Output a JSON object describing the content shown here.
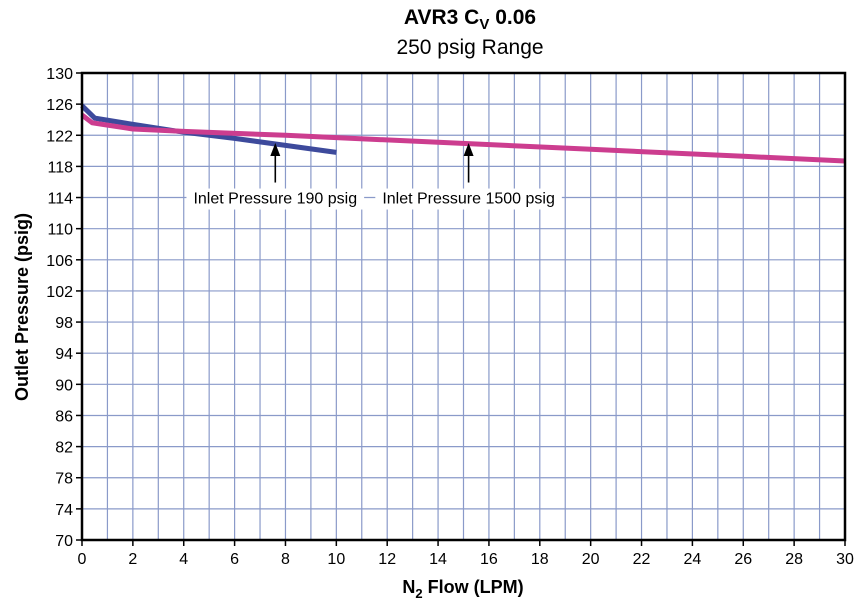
{
  "chart_data": {
    "type": "line",
    "title": {
      "prefix": "AVR3 C",
      "subscript": "V",
      "suffix": " 0.06"
    },
    "subtitle": "250 psig Range",
    "xlabel": {
      "prefix": "N",
      "subscript": "2",
      "suffix": " Flow (LPM)"
    },
    "ylabel": "Outlet Pressure (psig)",
    "xlim": [
      0,
      30
    ],
    "ylim": [
      70,
      130
    ],
    "x_ticks": [
      0,
      2,
      4,
      6,
      8,
      10,
      12,
      14,
      16,
      18,
      20,
      22,
      24,
      26,
      28,
      30
    ],
    "y_ticks": [
      70,
      74,
      78,
      82,
      86,
      90,
      94,
      98,
      102,
      106,
      110,
      114,
      118,
      122,
      126,
      130
    ],
    "x_minor_step": 1,
    "grid": true,
    "series": [
      {
        "name": "Inlet Pressure 190 psig",
        "color": "#3d4a9c",
        "points": [
          [
            0,
            125.8
          ],
          [
            0.5,
            124.2
          ],
          [
            2,
            123.4
          ],
          [
            4,
            122.4
          ],
          [
            6,
            121.6
          ],
          [
            8,
            120.7
          ],
          [
            10,
            119.8
          ]
        ]
      },
      {
        "name": "Inlet Pressure 1500 psig",
        "color": "#cc3d8f",
        "points": [
          [
            0,
            124.6
          ],
          [
            0.4,
            123.6
          ],
          [
            2,
            122.8
          ],
          [
            4,
            122.5
          ],
          [
            8,
            122.0
          ],
          [
            10,
            121.7
          ],
          [
            14,
            121.1
          ],
          [
            20,
            120.2
          ],
          [
            26,
            119.3
          ],
          [
            30,
            118.7
          ]
        ]
      }
    ],
    "annotations": [
      {
        "text": "Inlet Pressure 190 psig",
        "series": 0,
        "arrow_to": [
          7.6,
          121.0
        ],
        "label_at": [
          7.6,
          114.0
        ]
      },
      {
        "text": "Inlet Pressure 1500 psig",
        "series": 1,
        "arrow_to": [
          15.2,
          121.0
        ],
        "label_at": [
          15.2,
          114.0
        ]
      }
    ]
  }
}
